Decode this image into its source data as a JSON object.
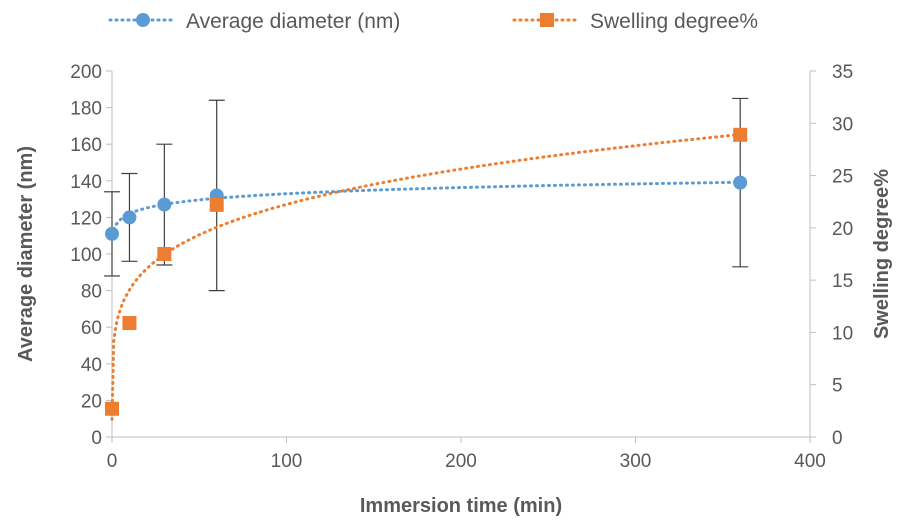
{
  "chart_data": {
    "type": "scatter",
    "xlabel": "Immersion time (min)",
    "ylabel": "Average diameter (nm)",
    "y2label": "Swelling degree%",
    "xlim": [
      0,
      400
    ],
    "ylim": [
      0,
      200
    ],
    "y2lim": [
      0,
      35
    ],
    "x_ticks": [
      "0",
      "100",
      "200",
      "300",
      "400"
    ],
    "y_ticks": [
      "0",
      "20",
      "40",
      "60",
      "80",
      "100",
      "120",
      "140",
      "160",
      "180",
      "200"
    ],
    "y2_ticks": [
      "0",
      "5",
      "10",
      "15",
      "20",
      "25",
      "30",
      "35"
    ],
    "grid": false,
    "legend_position": "top",
    "series": [
      {
        "name": "Average diameter (nm)",
        "axis": "left",
        "marker": "circle",
        "color": "#5B9BD5",
        "x": [
          0,
          10,
          30,
          60,
          360
        ],
        "y": [
          111,
          120,
          127,
          132,
          139
        ],
        "error": [
          23,
          24,
          33,
          52,
          46
        ],
        "trendline": "logarithmic, dotted"
      },
      {
        "name": "Swelling degree%",
        "axis": "right",
        "marker": "square",
        "color": "#ED7D31",
        "x": [
          0,
          10,
          30,
          60,
          360
        ],
        "y": [
          2.7,
          10.9,
          17.5,
          22.2,
          28.9
        ],
        "trendline": "power, dotted"
      }
    ],
    "axis_color": "#BFBFBF",
    "text_color": "#595959",
    "error_bar_color": "#404040"
  }
}
